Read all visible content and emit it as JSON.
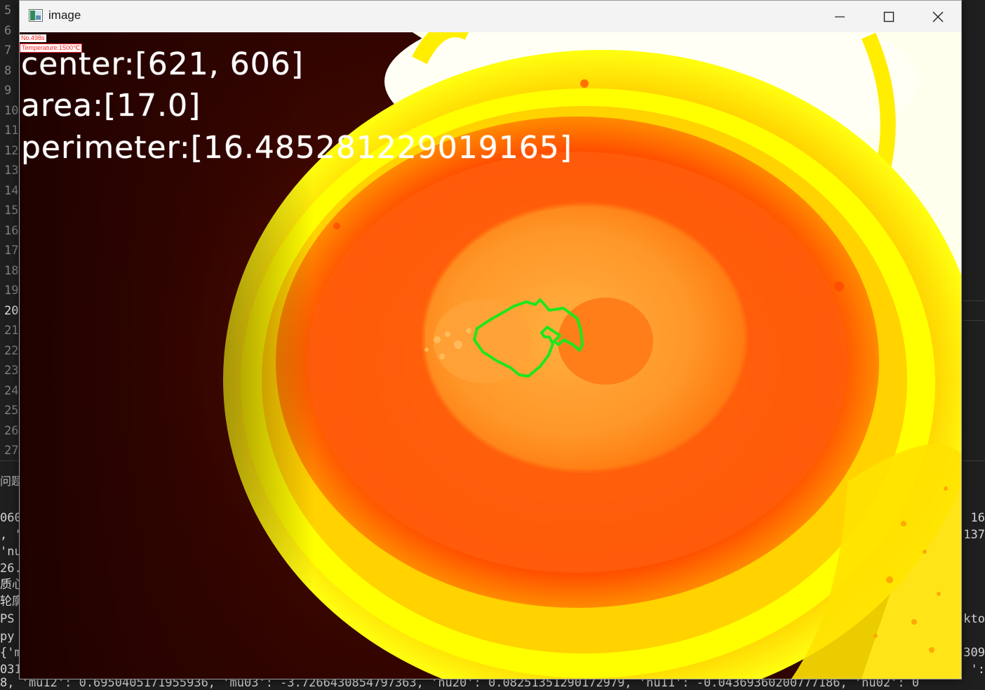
{
  "window": {
    "title": "image",
    "controls": [
      "minimize",
      "maximize",
      "close"
    ]
  },
  "overlay": {
    "frame_tag": "No.498s",
    "temperature_tag": "Temperature:1500℃",
    "center": "center:[621, 606]",
    "area": "area:[17.0]",
    "perimeter": "perimeter:[16.485281229019165]"
  },
  "colors": {
    "contour": "#1ee61e",
    "melt_orange": "#ff6a00",
    "crucible_yellow": "#ffff00",
    "background_dark": "#2a0300"
  },
  "editor": {
    "line_numbers": [
      "5",
      "6",
      "7",
      "8",
      "9",
      "10",
      "11",
      "12",
      "13",
      "14",
      "15",
      "16",
      "17",
      "18",
      "19",
      "20",
      "21",
      "22",
      "23",
      "24",
      "25",
      "26",
      "27"
    ],
    "active_line": "20"
  },
  "terminal": {
    "panel_tab": "问题",
    "left_lines": [
      "060",
      ", '",
      "'nu",
      "26.",
      "质心",
      "轮廓",
      "PS",
      "py",
      "{'m",
      "031"
    ],
    "right_lines": [
      "16",
      "137",
      "kto",
      "309",
      "':"
    ],
    "bottom_line": "8, 'mu12': 0.6950405171955936, 'mu03': -3.7266430854797363, 'nu20': 0.08251351290172979, 'nu11': -0.04369360200777186, 'nu02': 0"
  }
}
